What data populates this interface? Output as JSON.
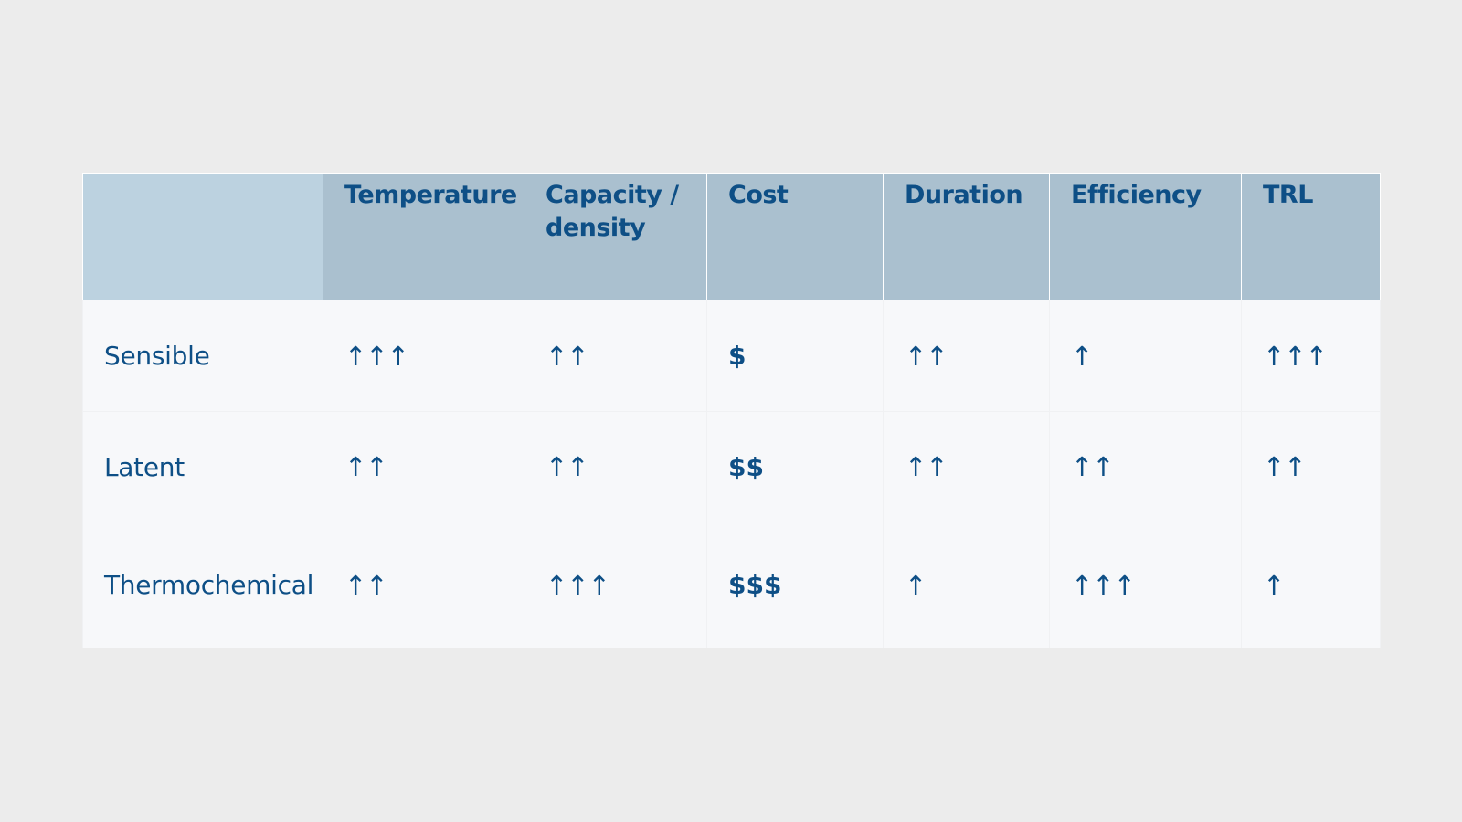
{
  "table": {
    "headers": [
      "",
      "Temperature",
      "Capacity / density",
      "Cost",
      "Duration",
      "Efficiency",
      "TRL"
    ],
    "rows": [
      {
        "label": "Sensible",
        "temperature": "↑↑↑",
        "capacity": "↑↑",
        "cost": "$",
        "duration": "↑↑",
        "efficiency": "↑",
        "trl": "↑↑↑"
      },
      {
        "label": "Latent",
        "temperature": "↑↑",
        "capacity": "↑↑",
        "cost": "$$",
        "duration": "↑↑",
        "efficiency": "↑↑",
        "trl": "↑↑"
      },
      {
        "label": "Thermochemical",
        "temperature": "↑↑",
        "capacity": "↑↑↑",
        "cost": "$$$",
        "duration": "↑",
        "efficiency": "↑↑↑",
        "trl": "↑"
      }
    ]
  },
  "colors": {
    "background": "#ececec",
    "header_fill": "#aac0cf",
    "corner_fill": "#bcd2e0",
    "body_fill": "#f7f8fa",
    "text": "#0e4f86"
  }
}
